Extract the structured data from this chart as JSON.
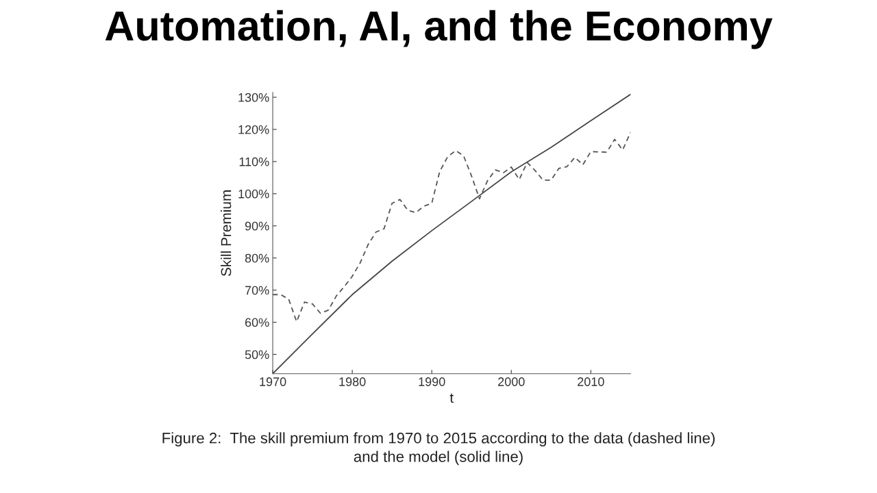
{
  "chart_data": {
    "type": "line",
    "title": "Automation, AI, and the Economy",
    "xlabel": "t",
    "ylabel": "Skill Premium",
    "annotations": [
      "Figure 2:  The skill premium from 1970 to 2015 according to the data (dashed line)\nand the model (solid line)"
    ],
    "series": [
      {
        "color": "#555555",
        "line_style": "dashed",
        "x": [
          1970,
          1971,
          1972,
          1973,
          1974,
          1975,
          1976,
          1977,
          1978,
          1979,
          1980,
          1981,
          1982,
          1983,
          1984,
          1985,
          1986,
          1987,
          1988,
          1989,
          1990,
          1991,
          1992,
          1993,
          1994,
          1995,
          1996,
          1997,
          1998,
          1999,
          2000,
          2001,
          2002,
          2003,
          2004,
          2005,
          2006,
          2007,
          2008,
          2009,
          2010,
          2012,
          2013,
          2014,
          2015
        ],
        "values": [
          68.6,
          68.6,
          67.2,
          60.2,
          66.3,
          65.7,
          62.8,
          63.8,
          68.2,
          71.1,
          74.3,
          78.5,
          84.2,
          88.1,
          89.1,
          97.0,
          98.2,
          94.8,
          94.1,
          96.1,
          97.0,
          106.9,
          111.5,
          113.4,
          111.8,
          105.5,
          98.4,
          104.0,
          107.4,
          106.5,
          108.3,
          104.4,
          109.7,
          107.2,
          104.2,
          104.2,
          107.9,
          108.4,
          111.3,
          109.0,
          113.1,
          112.9,
          116.9,
          113.6,
          119.1
        ]
      },
      {
        "color": "#444444",
        "line_style": "solid",
        "x": [
          1970,
          1975,
          1980,
          1985,
          1990,
          1995,
          2000,
          2005,
          2010,
          2015
        ],
        "values": [
          44,
          56.4,
          68.6,
          79,
          88.5,
          97.6,
          106.8,
          114.4,
          122.7,
          130.9
        ]
      }
    ],
    "xlim": [
      1970,
      2015
    ],
    "xticks": [
      1970,
      1980,
      1990,
      2000,
      2010
    ],
    "ylim": [
      44,
      131.5
    ],
    "yticks": [
      {
        "value": 50,
        "label": "50%"
      },
      {
        "value": 60,
        "label": "60%"
      },
      {
        "value": 70,
        "label": "70%"
      },
      {
        "value": 80,
        "label": "80%"
      },
      {
        "value": 90,
        "label": "90%"
      },
      {
        "value": 100,
        "label": "100%"
      },
      {
        "value": 110,
        "label": "110%"
      },
      {
        "value": 120,
        "label": "120%"
      },
      {
        "value": 130,
        "label": "130%"
      }
    ],
    "grid": false,
    "legend": false
  }
}
